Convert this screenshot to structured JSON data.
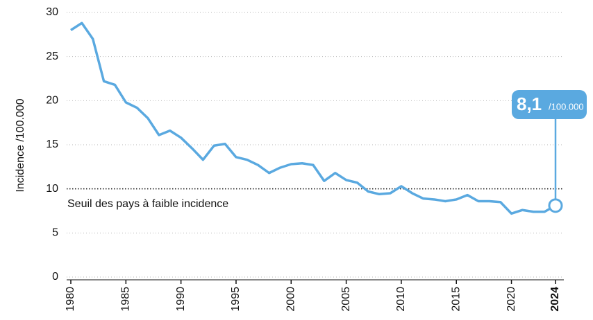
{
  "chart_data": {
    "type": "line",
    "y_label": "Incidence /100.000",
    "x": [
      1980,
      1981,
      1982,
      1983,
      1984,
      1985,
      1986,
      1987,
      1988,
      1989,
      1990,
      1991,
      1992,
      1993,
      1994,
      1995,
      1996,
      1997,
      1998,
      1999,
      2000,
      2001,
      2002,
      2003,
      2004,
      2005,
      2006,
      2007,
      2008,
      2009,
      2010,
      2011,
      2012,
      2013,
      2014,
      2015,
      2016,
      2017,
      2018,
      2019,
      2020,
      2021,
      2022,
      2023,
      2024
    ],
    "series": [
      {
        "color": "#5aa9e0",
        "values": [
          28.0,
          28.8,
          27.0,
          22.2,
          21.8,
          19.8,
          19.2,
          18.0,
          16.1,
          16.6,
          15.8,
          14.6,
          13.3,
          14.9,
          15.1,
          13.6,
          13.3,
          12.7,
          11.8,
          12.4,
          12.8,
          12.9,
          12.7,
          10.9,
          11.8,
          11.0,
          10.7,
          9.7,
          9.4,
          9.5,
          10.3,
          9.5,
          8.9,
          8.8,
          8.6,
          8.8,
          9.3,
          8.6,
          8.6,
          8.5,
          7.2,
          7.6,
          7.4,
          7.4,
          8.1
        ]
      }
    ],
    "xlim": [
      1980,
      2024
    ],
    "xticks": [
      1980,
      1985,
      1990,
      1995,
      2000,
      2005,
      2010,
      2015,
      2020,
      2024
    ],
    "ylim": [
      0,
      30
    ],
    "yticks": [
      0,
      5,
      10,
      15,
      20,
      25,
      30
    ],
    "grid": true,
    "threshold": {
      "value": 10,
      "label": "Seuil des pays à faible incidence"
    },
    "annotation": {
      "text": "8,1",
      "unit": "/100.000"
    }
  }
}
